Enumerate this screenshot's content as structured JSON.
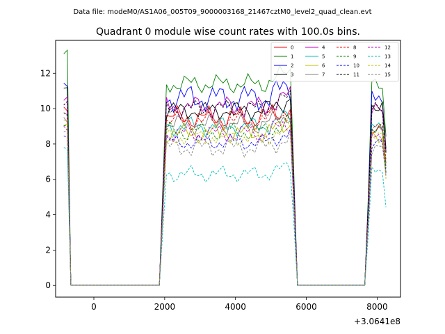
{
  "chart_data": {
    "type": "line",
    "suptitle": "Data file: modeM0/AS1A06_005T09_9000003168_21467cztM0_level2_quad_clean.evt",
    "title": "Quadrant 0 module wise count rates with 100.0s bins.",
    "xlabel": "",
    "ylabel": "",
    "x_offset_label": "+3.0641e8",
    "xlim": [
      -1080,
      8660
    ],
    "ylim": [
      -0.66,
      13.86
    ],
    "x_ticks": [
      0,
      2000,
      4000,
      6000,
      8000
    ],
    "x_tick_labels": [
      "0",
      "2000",
      "4000",
      "6000",
      "8000"
    ],
    "y_ticks": [
      0,
      2,
      4,
      6,
      8,
      10,
      12
    ],
    "y_tick_labels": [
      "0",
      "2",
      "4",
      "6",
      "8",
      "10",
      "12"
    ],
    "grid": false,
    "legend_position": "top-right",
    "legend_columns": 4,
    "series": [
      {
        "name": "0",
        "color": "#ff0000",
        "dash": "solid",
        "a": 10.1,
        "b": 9.5,
        "c": 9.0,
        "amp": 0.35,
        "p": 1.1
      },
      {
        "name": "1",
        "color": "#008000",
        "dash": "solid",
        "a": 13.1,
        "b": 11.4,
        "c": 11.3,
        "amp": 0.3,
        "p": 2.3
      },
      {
        "name": "2",
        "color": "#0000ff",
        "dash": "solid",
        "a": 11.2,
        "b": 10.6,
        "c": 10.6,
        "amp": 0.45,
        "p": 0.4
      },
      {
        "name": "3",
        "color": "#000000",
        "dash": "solid",
        "a": 11.2,
        "b": 9.9,
        "c": 10.2,
        "amp": 0.3,
        "p": 3.1
      },
      {
        "name": "4",
        "color": "#bf00bf",
        "dash": "solid",
        "a": 10.6,
        "b": 10.1,
        "c": 9.8,
        "amp": 0.35,
        "p": 1.9
      },
      {
        "name": "5",
        "color": "#00bfbf",
        "dash": "solid",
        "a": 9.6,
        "b": 9.0,
        "c": 8.9,
        "amp": 0.3,
        "p": 4.2
      },
      {
        "name": "6",
        "color": "#bfbf00",
        "dash": "solid",
        "a": 9.0,
        "b": 8.6,
        "c": 8.5,
        "amp": 0.3,
        "p": 2.7
      },
      {
        "name": "7",
        "color": "#808080",
        "dash": "solid",
        "a": 9.4,
        "b": 9.1,
        "c": 9.0,
        "amp": 0.3,
        "p": 0.9
      },
      {
        "name": "8",
        "color": "#ff0000",
        "dash": "dashed",
        "a": 9.8,
        "b": 9.3,
        "c": 9.2,
        "amp": 0.3,
        "p": 5.1
      },
      {
        "name": "9",
        "color": "#008000",
        "dash": "dashed",
        "a": 9.1,
        "b": 8.7,
        "c": 8.8,
        "amp": 0.3,
        "p": 3.6
      },
      {
        "name": "10",
        "color": "#0000ff",
        "dash": "dashed",
        "a": 8.6,
        "b": 8.1,
        "c": 8.1,
        "amp": 0.25,
        "p": 1.4
      },
      {
        "name": "11",
        "color": "#000000",
        "dash": "dashed",
        "a": 10.3,
        "b": 10.0,
        "c": 9.9,
        "amp": 0.3,
        "p": 2.0
      },
      {
        "name": "12",
        "color": "#bf00bf",
        "dash": "dashed",
        "a": 8.8,
        "b": 8.6,
        "c": 8.5,
        "amp": 0.3,
        "p": 4.6
      },
      {
        "name": "13",
        "color": "#00bfbf",
        "dash": "dashed",
        "a": 7.6,
        "b": 6.3,
        "c": 6.4,
        "amp": 0.25,
        "p": 0.2
      },
      {
        "name": "14",
        "color": "#bfbf00",
        "dash": "dashed",
        "a": 9.3,
        "b": 8.4,
        "c": 8.3,
        "amp": 0.3,
        "p": 3.9
      },
      {
        "name": "15",
        "color": "#808080",
        "dash": "dashed",
        "a": 8.9,
        "b": 7.8,
        "c": 7.8,
        "amp": 0.3,
        "p": 5.5
      }
    ]
  }
}
